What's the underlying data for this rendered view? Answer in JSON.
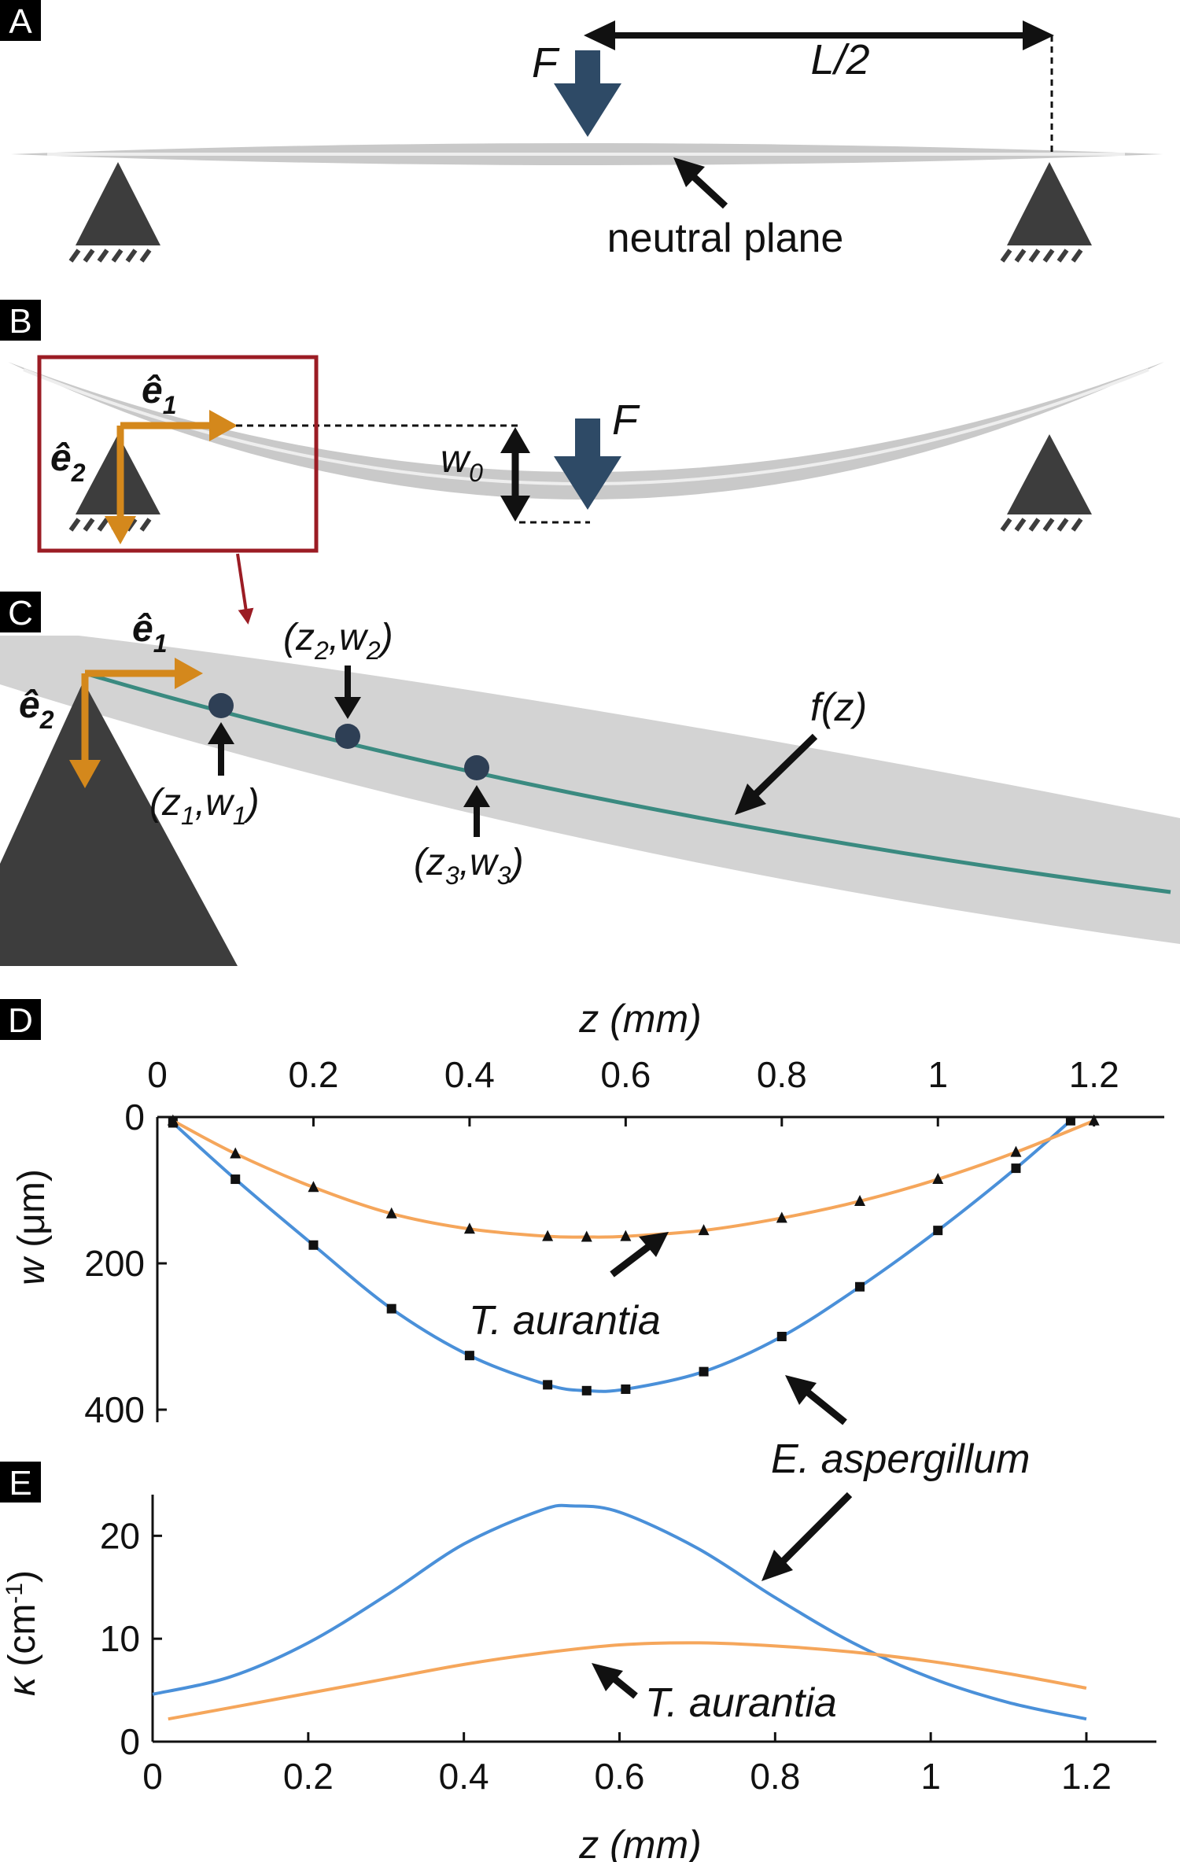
{
  "panels": {
    "A": {
      "label": "A",
      "force_label": "F",
      "half_span_label": "L/2",
      "neutral_plane_label": "neutral plane"
    },
    "B": {
      "label": "B",
      "e1_label": "ê",
      "e1_sub": "1",
      "e2_label": "ê",
      "e2_sub": "2",
      "deflection_label": "w",
      "deflection_sub": "0",
      "force_label": "F"
    },
    "C": {
      "label": "C",
      "e1_label": "ê",
      "e1_sub": "1",
      "e2_label": "ê",
      "e2_sub": "2",
      "curve_label": "f(z)",
      "points": [
        {
          "z": "z",
          "zsub": "1",
          "w": "w",
          "wsub": "1"
        },
        {
          "z": "z",
          "zsub": "2",
          "w": "w",
          "wsub": "2"
        },
        {
          "z": "z",
          "zsub": "3",
          "w": "w",
          "wsub": "3"
        }
      ]
    },
    "D": {
      "label": "D"
    },
    "E": {
      "label": "E"
    }
  },
  "colors": {
    "e_aspergillum": "#4a90d9",
    "t_aurantia": "#f5a65b",
    "basis_vectors": "#d4881c",
    "force_arrow": "#2e4a66",
    "fit_curve": "#3a8a80",
    "beam": "#c9c9c9",
    "support": "#3d3d3d",
    "highlight_box": "#9b1c24"
  },
  "chart_data": [
    {
      "type": "scatter",
      "panel": "D",
      "xlabel": "z (mm)",
      "ylabel": "w (μm)",
      "xlim": [
        0,
        1.29
      ],
      "ylim": [
        400,
        0
      ],
      "xticks": [
        0,
        0.2,
        0.4,
        0.6,
        0.8,
        1,
        1.2
      ],
      "xtick_labels": [
        "0",
        "0.2",
        "0.4",
        "0.6",
        "0.8",
        "1",
        "1.2"
      ],
      "yticks": [
        0,
        200,
        400
      ],
      "ytick_labels": [
        "0",
        "200",
        "400"
      ],
      "x_axis_position": "top",
      "y_axis_inverted": true,
      "series": [
        {
          "name": "E. aspergillum",
          "marker": "square",
          "fit_shape": "w(z) = 375·exp(−|z−0.55|/0.59)-shaped minimum near z≈0.55",
          "x": [
            0.02,
            0.1,
            0.2,
            0.3,
            0.4,
            0.5,
            0.55,
            0.6,
            0.7,
            0.8,
            0.9,
            1.0,
            1.1,
            1.17
          ],
          "y": [
            8,
            85,
            175,
            262,
            326,
            366,
            374,
            372,
            348,
            300,
            232,
            155,
            70,
            5
          ]
        },
        {
          "name": "T. aurantia",
          "marker": "triangle",
          "x": [
            0.02,
            0.1,
            0.2,
            0.3,
            0.4,
            0.5,
            0.55,
            0.6,
            0.7,
            0.8,
            0.9,
            1.0,
            1.1,
            1.2
          ],
          "y": [
            5,
            50,
            96,
            132,
            153,
            163,
            164,
            163,
            155,
            138,
            115,
            85,
            48,
            5
          ]
        }
      ],
      "annotations": [
        "T. aurantia",
        "E. aspergillum"
      ]
    },
    {
      "type": "line",
      "panel": "E",
      "xlabel": "z (mm)",
      "ylabel": "κ (cm⁻¹)",
      "xlim": [
        0,
        1.29
      ],
      "ylim": [
        0,
        24
      ],
      "xticks": [
        0,
        0.2,
        0.4,
        0.6,
        0.8,
        1,
        1.2
      ],
      "xtick_labels": [
        "0",
        "0.2",
        "0.4",
        "0.6",
        "0.8",
        "1",
        "1.2"
      ],
      "yticks": [
        0,
        10,
        20
      ],
      "ytick_labels": [
        "0",
        "10",
        "20"
      ],
      "series": [
        {
          "name": "E. aspergillum",
          "x": [
            0.0,
            0.1,
            0.2,
            0.3,
            0.4,
            0.5,
            0.54,
            0.6,
            0.7,
            0.8,
            0.9,
            1.0,
            1.1,
            1.2
          ],
          "y": [
            4.6,
            6.3,
            9.6,
            14.2,
            19.2,
            22.5,
            22.9,
            22.3,
            18.8,
            14.0,
            9.6,
            6.2,
            3.8,
            2.2
          ]
        },
        {
          "name": "T. aurantia",
          "x": [
            0.02,
            0.1,
            0.2,
            0.3,
            0.4,
            0.5,
            0.6,
            0.7,
            0.8,
            0.9,
            1.0,
            1.1,
            1.2
          ],
          "y": [
            2.2,
            3.3,
            4.7,
            6.1,
            7.5,
            8.6,
            9.4,
            9.6,
            9.3,
            8.7,
            7.8,
            6.6,
            5.2
          ]
        }
      ],
      "annotations": [
        "T. aurantia"
      ]
    }
  ],
  "chart_annotations": {
    "t_aurantia_label": "T. aurantia",
    "e_aspergillum_label": "E. aspergillum",
    "t_aurantia_label_E": "T. aurantia",
    "axis_top_label": "z (mm)",
    "axis_bottom_label": "z (mm)",
    "ylabel_D_var": "w",
    "ylabel_D_unit": " (μm)",
    "ylabel_E_var": "κ",
    "ylabel_E_unit": " (cm",
    "ylabel_E_exp": "-1",
    "ylabel_E_close": ")"
  }
}
